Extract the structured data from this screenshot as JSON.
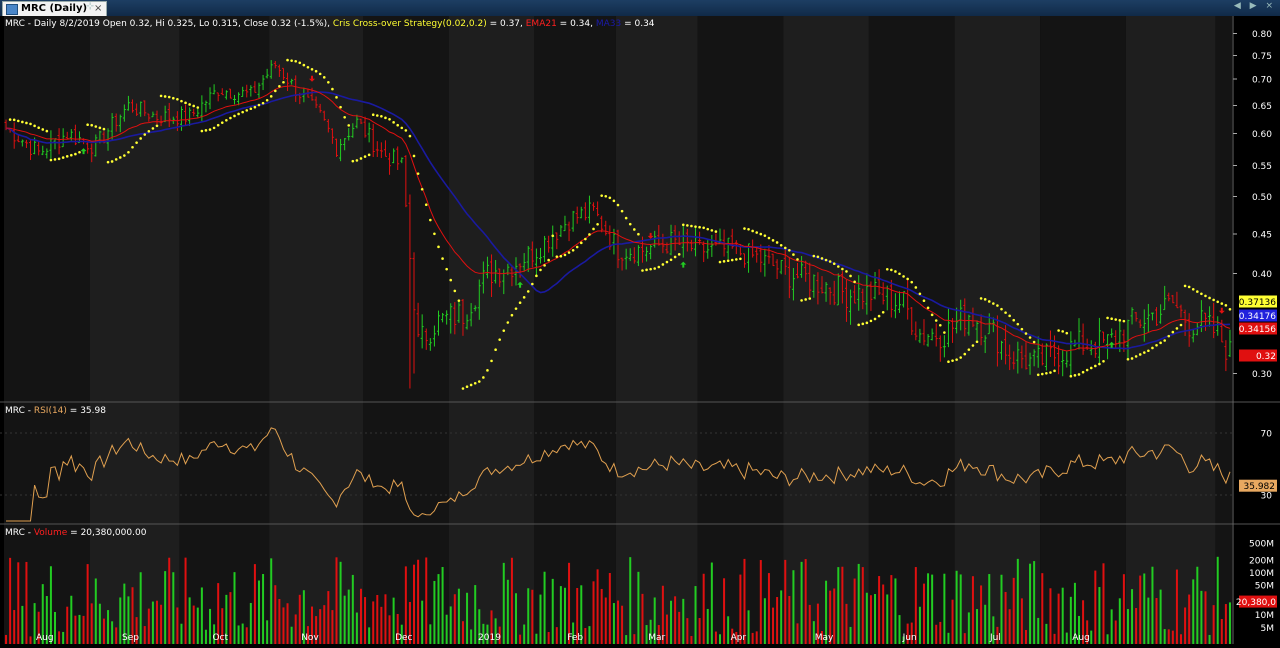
{
  "window": {
    "tab_title": "MRC (Daily)",
    "close_glyph": "×",
    "pin_glyph": "⊹",
    "nav_glyphs": "◀ ▶ ×"
  },
  "price_header": {
    "text": "MRC - Daily 8/2/2019 Open 0.32, Hi 0.325, Lo 0.315, Close 0.32 (-1.5%)",
    "parts": [
      {
        "text": "MRC - Daily 8/2/2019 Open 0.32, Hi 0.325, Lo 0.315, Close 0.32 (-1.5%)",
        "color": "#ffffff"
      },
      {
        "text": "Cris Cross-over Strategy(0.02,0.2)",
        "color": "#ffff33"
      },
      {
        "text": " = 0.37, ",
        "color": "#ffffff"
      },
      {
        "text": "EMA21",
        "color": "#ff2020"
      },
      {
        "text": " = 0.34, ",
        "color": "#ffffff"
      },
      {
        "text": "MA33",
        "color": "#1a1aa8"
      },
      {
        "text": " = 0.34",
        "color": "#ffffff"
      }
    ]
  },
  "rsi_header": {
    "parts": [
      {
        "text": "MRC - ",
        "color": "#ffffff"
      },
      {
        "text": "RSI(14)",
        "color": "#e8a860"
      },
      {
        "text": " = 35.98",
        "color": "#ffffff"
      }
    ]
  },
  "volume_header": {
    "parts": [
      {
        "text": "MRC - ",
        "color": "#ffffff"
      },
      {
        "text": "Volume",
        "color": "#ff2020"
      },
      {
        "text": " = 20,380,000.00",
        "color": "#ffffff"
      }
    ]
  },
  "colors": {
    "up": "#22cc22",
    "down": "#e01010",
    "ema": "#e01010",
    "ma": "#1a1aa0",
    "sar": "#ffff33",
    "rsi": "#e0a050",
    "axis_text": "#ffffff",
    "band_a": "#141414",
    "band_b": "#1e1e1e"
  },
  "chart_data": [
    {
      "type": "candlestick",
      "title": "MRC - Daily",
      "ylim": [
        0.28,
        0.82
      ],
      "y_ticks": [
        0.3,
        0.4,
        0.45,
        0.5,
        0.55,
        0.6,
        0.65,
        0.7,
        0.75,
        0.8
      ],
      "y_tick_labels": [
        "0.30",
        "0.40",
        "0.45",
        "0.50",
        "0.55",
        "0.60",
        "0.65",
        "0.70",
        "0.75",
        "0.80"
      ],
      "x_tick_labels": [
        "Aug",
        "Sep",
        "Oct",
        "Nov",
        "Dec",
        "2019",
        "Feb",
        "Mar",
        "Apr",
        "May",
        "Jun",
        "Jul",
        "Aug"
      ],
      "close_anchors": [
        [
          0,
          0.61
        ],
        [
          8,
          0.57
        ],
        [
          15,
          0.6
        ],
        [
          22,
          0.58
        ],
        [
          30,
          0.65
        ],
        [
          37,
          0.63
        ],
        [
          45,
          0.63
        ],
        [
          52,
          0.68
        ],
        [
          60,
          0.67
        ],
        [
          66,
          0.73
        ],
        [
          71,
          0.68
        ],
        [
          77,
          0.63
        ],
        [
          81,
          0.58
        ],
        [
          86,
          0.62
        ],
        [
          92,
          0.57
        ],
        [
          97,
          0.55
        ],
        [
          99,
          0.42
        ],
        [
          101,
          0.33
        ],
        [
          105,
          0.35
        ],
        [
          112,
          0.36
        ],
        [
          118,
          0.4
        ],
        [
          124,
          0.41
        ],
        [
          130,
          0.43
        ],
        [
          138,
          0.47
        ],
        [
          144,
          0.48
        ],
        [
          150,
          0.43
        ],
        [
          156,
          0.43
        ],
        [
          163,
          0.44
        ],
        [
          170,
          0.43
        ],
        [
          178,
          0.43
        ],
        [
          184,
          0.42
        ],
        [
          192,
          0.4
        ],
        [
          200,
          0.39
        ],
        [
          206,
          0.38
        ],
        [
          212,
          0.38
        ],
        [
          220,
          0.37
        ],
        [
          224,
          0.34
        ],
        [
          230,
          0.34
        ],
        [
          236,
          0.36
        ],
        [
          242,
          0.34
        ],
        [
          246,
          0.32
        ],
        [
          252,
          0.31
        ],
        [
          258,
          0.32
        ],
        [
          264,
          0.33
        ],
        [
          270,
          0.33
        ],
        [
          276,
          0.35
        ],
        [
          282,
          0.36
        ],
        [
          286,
          0.37
        ],
        [
          290,
          0.35
        ],
        [
          293,
          0.35
        ],
        [
          297,
          0.34
        ],
        [
          300,
          0.32
        ]
      ],
      "series": [
        {
          "name": "Cris Cross-over Strategy(0.02,0.2)",
          "last": "0.37136"
        },
        {
          "name": "MA33",
          "last": "0.34176"
        },
        {
          "name": "EMA21",
          "last": "0.34156"
        },
        {
          "name": "Close",
          "last": "0.32"
        }
      ],
      "signals": {
        "buy": [
          19,
          126,
          166,
          271
        ],
        "sell": [
          75,
          158,
          298
        ]
      }
    },
    {
      "type": "line",
      "title": "MRC - RSI(14)",
      "ylim": [
        0,
        100
      ],
      "y_tick_labels": [
        "70",
        "30"
      ],
      "last_value_label": "35.982",
      "series": [
        {
          "name": "RSI(14)",
          "last": 35.98
        }
      ]
    },
    {
      "type": "bar",
      "title": "MRC - Volume",
      "y_scale": "log",
      "y_tick_labels": [
        "500M",
        "200M",
        "100M",
        "50M",
        "20M",
        "10M",
        "5M"
      ],
      "last_value_label": "20,380,0",
      "series": [
        {
          "name": "Volume",
          "last": 20380000
        }
      ]
    }
  ]
}
